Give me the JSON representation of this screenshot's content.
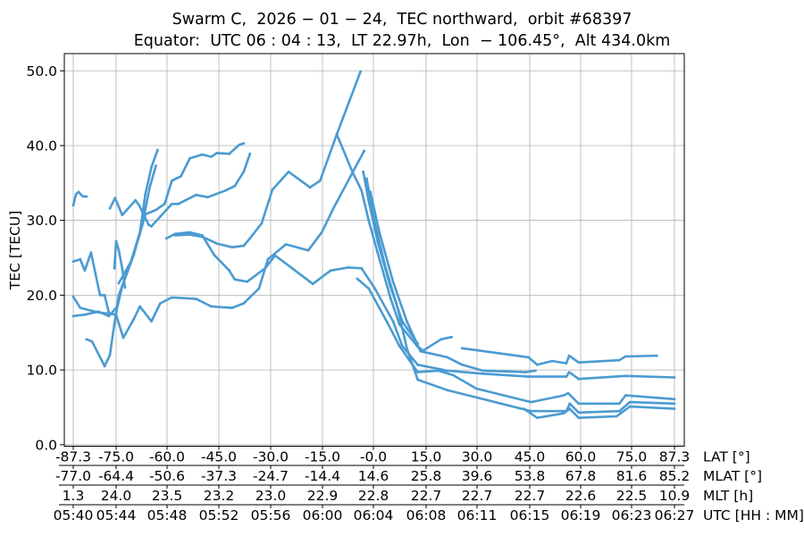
{
  "chart_data": {
    "type": "scatter",
    "title_line1": "Swarm C,  2026 − 01 − 24,  TEC northward,  orbit #68397",
    "title_line2": "Equator:  UTC 06 : 04 : 13,  LT 22.97h,  Lon  − 106.45°,  Alt 434.0km",
    "ylabel": "TEC [TECU]",
    "ylim": [
      -0.2,
      52.3
    ],
    "xlim": [
      -89.9,
      90.1
    ],
    "yticks": [
      "0.0",
      "10.0",
      "20.0",
      "30.0",
      "40.0",
      "50.0"
    ],
    "grid": true,
    "color": "#4b9bd1",
    "x_axes": [
      {
        "label": "LAT [°]",
        "ticks": [
          "-87.3",
          "-75.0",
          "-60.0",
          "-45.0",
          "-30.0",
          "-15.0",
          "-0.0",
          "15.0",
          "30.0",
          "45.0",
          "60.0",
          "75.0",
          "87.3"
        ]
      },
      {
        "label": "MLAT [°]",
        "ticks": [
          "-77.0",
          "-64.4",
          "-50.6",
          "-37.3",
          "-24.7",
          "-14.4",
          "14.6",
          "25.8",
          "39.6",
          "53.8",
          "67.8",
          "81.6",
          "85.2"
        ]
      },
      {
        "label": "MLT [h]",
        "ticks": [
          "1.3",
          "24.0",
          "23.5",
          "23.2",
          "23.0",
          "22.9",
          "22.8",
          "22.7",
          "22.7",
          "22.7",
          "22.6",
          "22.5",
          "10.9"
        ]
      },
      {
        "label": "UTC [HH : MM]",
        "ticks": [
          "05:40",
          "05:44",
          "05:48",
          "05:52",
          "05:56",
          "06:00",
          "06:04",
          "06:08",
          "06:11",
          "06:15",
          "06:19",
          "06:23",
          "06:27"
        ]
      }
    ],
    "series": [
      {
        "points": [
          [
            -87.3,
            32.0
          ],
          [
            -86.5,
            33.5
          ],
          [
            -85.8,
            33.8
          ],
          [
            -84.5,
            33.2
          ],
          [
            -83.5,
            33.2
          ]
        ]
      },
      {
        "points": [
          [
            -76.8,
            31.6
          ],
          [
            -75.3,
            33.0
          ],
          [
            -73.2,
            30.7
          ],
          [
            -69.3,
            32.7
          ],
          [
            -68.2,
            32.0
          ],
          [
            -65.4,
            29.4
          ],
          [
            -64.6,
            29.2
          ],
          [
            -62.0,
            30.5
          ],
          [
            -60.2,
            31.4
          ],
          [
            -58.6,
            32.2
          ],
          [
            -56.8,
            32.2
          ],
          [
            -51.6,
            33.4
          ],
          [
            -48.2,
            33.1
          ],
          [
            -43.0,
            34.0
          ],
          [
            -40.4,
            34.6
          ],
          [
            -37.8,
            36.5
          ],
          [
            -36.0,
            38.9
          ]
        ]
      },
      {
        "points": [
          [
            -74.2,
            21.6
          ],
          [
            -70.6,
            24.5
          ],
          [
            -68.0,
            28.2
          ],
          [
            -66.4,
            30.8
          ],
          [
            -63.3,
            31.4
          ],
          [
            -60.7,
            32.2
          ],
          [
            -58.6,
            35.3
          ],
          [
            -56.0,
            35.9
          ],
          [
            -53.4,
            38.3
          ],
          [
            -49.8,
            38.8
          ],
          [
            -47.2,
            38.5
          ],
          [
            -45.6,
            39.0
          ],
          [
            -42.0,
            38.9
          ],
          [
            -39.1,
            40.1
          ],
          [
            -37.8,
            40.3
          ]
        ]
      },
      {
        "points": [
          [
            -83.5,
            14.1
          ],
          [
            -81.9,
            13.8
          ],
          [
            -78.3,
            10.5
          ],
          [
            -76.8,
            12.0
          ],
          [
            -75.5,
            16.1
          ],
          [
            -74.2,
            20.0
          ],
          [
            -70.6,
            24.5
          ],
          [
            -68.0,
            28.4
          ],
          [
            -66.4,
            33.5
          ],
          [
            -64.6,
            37.1
          ],
          [
            -62.8,
            39.4
          ]
        ]
      },
      {
        "points": [
          [
            -75.0,
            17.7
          ],
          [
            -73.2,
            21.2
          ],
          [
            -69.8,
            25.4
          ],
          [
            -67.2,
            29.6
          ],
          [
            -65.1,
            34.4
          ],
          [
            -63.3,
            37.3
          ]
        ]
      },
      {
        "points": [
          [
            -60.2,
            27.6
          ],
          [
            -57.6,
            28.2
          ],
          [
            -53.4,
            28.4
          ],
          [
            -49.8,
            28.0
          ],
          [
            -46.4,
            25.4
          ],
          [
            -42.0,
            23.3
          ],
          [
            -40.4,
            22.1
          ],
          [
            -36.8,
            21.8
          ],
          [
            -31.6,
            23.6
          ],
          [
            -28.7,
            25.3
          ],
          [
            -23.8,
            23.6
          ],
          [
            -17.8,
            21.5
          ],
          [
            -12.6,
            23.3
          ],
          [
            -7.4,
            23.7
          ],
          [
            -3.5,
            23.6
          ],
          [
            0.4,
            20.9
          ],
          [
            5.6,
            16.5
          ],
          [
            8.2,
            13.2
          ],
          [
            12.6,
            10.7
          ],
          [
            21.2,
            9.9
          ],
          [
            31.6,
            9.5
          ],
          [
            44.6,
            9.1
          ],
          [
            55.8,
            9.1
          ],
          [
            56.6,
            9.7
          ],
          [
            59.4,
            8.8
          ],
          [
            73.2,
            9.2
          ],
          [
            87.3,
            9.0
          ]
        ]
      },
      {
        "points": [
          [
            -87.3,
            19.8
          ],
          [
            -85.3,
            18.3
          ],
          [
            -80.1,
            17.7
          ],
          [
            -75.0,
            17.4
          ],
          [
            -72.9,
            14.3
          ],
          [
            -69.8,
            16.8
          ],
          [
            -68.0,
            18.5
          ],
          [
            -64.6,
            16.5
          ],
          [
            -62.0,
            18.9
          ],
          [
            -58.6,
            19.7
          ],
          [
            -51.6,
            19.5
          ],
          [
            -47.2,
            18.5
          ],
          [
            -41.2,
            18.3
          ],
          [
            -37.8,
            18.9
          ],
          [
            -33.4,
            20.9
          ],
          [
            -30.8,
            24.8
          ],
          [
            -25.6,
            26.8
          ],
          [
            -19.1,
            26.0
          ],
          [
            -15.2,
            28.4
          ],
          [
            -11.8,
            31.6
          ],
          [
            -2.7,
            39.3
          ]
        ]
      },
      {
        "points": [
          [
            -57.6,
            28.0
          ],
          [
            -53.4,
            28.1
          ],
          [
            -49.8,
            27.8
          ],
          [
            -45.6,
            26.9
          ],
          [
            -41.2,
            26.4
          ],
          [
            -37.8,
            26.6
          ],
          [
            -36.0,
            27.6
          ],
          [
            -32.6,
            29.6
          ],
          [
            -29.5,
            34.1
          ],
          [
            -24.8,
            36.5
          ],
          [
            -18.6,
            34.4
          ],
          [
            -15.7,
            35.3
          ],
          [
            -10.8,
            41.5
          ],
          [
            -3.8,
            49.9
          ]
        ]
      },
      {
        "points": [
          [
            -10.8,
            41.5
          ],
          [
            -6.1,
            36.4
          ],
          [
            -3.5,
            34.0
          ],
          [
            -1.4,
            30.0
          ],
          [
            1.2,
            25.7
          ],
          [
            4.8,
            19.7
          ],
          [
            7.4,
            16.1
          ],
          [
            12.6,
            13.1
          ],
          [
            14.2,
            12.6
          ],
          [
            19.4,
            14.1
          ],
          [
            22.5,
            14.4
          ]
        ]
      },
      {
        "points": [
          [
            -4.8,
            22.2
          ],
          [
            -1.4,
            20.9
          ],
          [
            3.8,
            16.5
          ],
          [
            7.4,
            13.2
          ],
          [
            12.6,
            9.7
          ],
          [
            18.6,
            9.9
          ],
          [
            23.0,
            9.3
          ],
          [
            29.8,
            7.5
          ],
          [
            45.4,
            5.7
          ],
          [
            55.0,
            6.6
          ],
          [
            56.3,
            6.9
          ],
          [
            59.4,
            5.5
          ],
          [
            71.4,
            5.5
          ],
          [
            73.2,
            6.6
          ],
          [
            87.3,
            6.1
          ]
        ]
      },
      {
        "points": [
          [
            -3.0,
            36.5
          ],
          [
            -1.4,
            32.6
          ],
          [
            1.2,
            27.2
          ],
          [
            4.8,
            21.2
          ],
          [
            8.2,
            16.5
          ],
          [
            12.6,
            13.5
          ]
        ]
      },
      {
        "points": [
          [
            25.6,
            12.9
          ],
          [
            44.6,
            11.7
          ],
          [
            47.2,
            10.7
          ],
          [
            51.6,
            11.2
          ],
          [
            55.8,
            10.9
          ],
          [
            56.6,
            11.9
          ],
          [
            59.4,
            11.0
          ],
          [
            71.4,
            11.3
          ],
          [
            73.2,
            11.8
          ],
          [
            82.2,
            11.9
          ]
        ]
      },
      {
        "points": [
          [
            -0.9,
            33.8
          ],
          [
            1.7,
            28.4
          ],
          [
            5.6,
            21.8
          ],
          [
            9.5,
            16.5
          ],
          [
            13.4,
            12.5
          ],
          [
            21.2,
            11.7
          ],
          [
            25.6,
            10.7
          ],
          [
            31.6,
            9.9
          ],
          [
            43.8,
            9.7
          ],
          [
            46.7,
            9.9
          ]
        ]
      },
      {
        "points": [
          [
            -2.0,
            35.6
          ],
          [
            0.4,
            29.6
          ],
          [
            3.5,
            23.6
          ],
          [
            6.9,
            18.3
          ],
          [
            9.5,
            12.9
          ],
          [
            12.6,
            8.7
          ],
          [
            21.2,
            7.3
          ],
          [
            36.8,
            5.5
          ],
          [
            45.4,
            4.5
          ],
          [
            55.8,
            4.5
          ],
          [
            56.8,
            5.5
          ],
          [
            59.4,
            4.3
          ],
          [
            71.4,
            4.5
          ],
          [
            74.5,
            5.7
          ],
          [
            87.3,
            5.5
          ]
        ]
      },
      {
        "points": [
          [
            43.3,
            4.8
          ],
          [
            47.2,
            3.6
          ],
          [
            55.0,
            4.2
          ],
          [
            56.8,
            4.8
          ],
          [
            59.4,
            3.6
          ],
          [
            70.6,
            3.8
          ],
          [
            74.5,
            5.1
          ],
          [
            87.3,
            4.8
          ]
        ]
      },
      {
        "points": [
          [
            -87.3,
            24.5
          ],
          [
            -85.3,
            24.8
          ],
          [
            -84.0,
            23.3
          ],
          [
            -82.2,
            25.7
          ],
          [
            -80.9,
            22.8
          ],
          [
            -79.6,
            20.0
          ],
          [
            -78.3,
            20.0
          ],
          [
            -77.1,
            17.7
          ]
        ]
      },
      {
        "points": [
          [
            -87.3,
            17.2
          ],
          [
            -84.0,
            17.4
          ],
          [
            -80.1,
            17.8
          ],
          [
            -77.1,
            17.2
          ],
          [
            -75.0,
            18.3
          ]
        ]
      },
      {
        "points": [
          [
            -75.5,
            23.6
          ],
          [
            -75.0,
            27.2
          ],
          [
            -74.2,
            26.0
          ],
          [
            -73.2,
            23.6
          ],
          [
            -72.4,
            21.0
          ]
        ]
      }
    ]
  }
}
